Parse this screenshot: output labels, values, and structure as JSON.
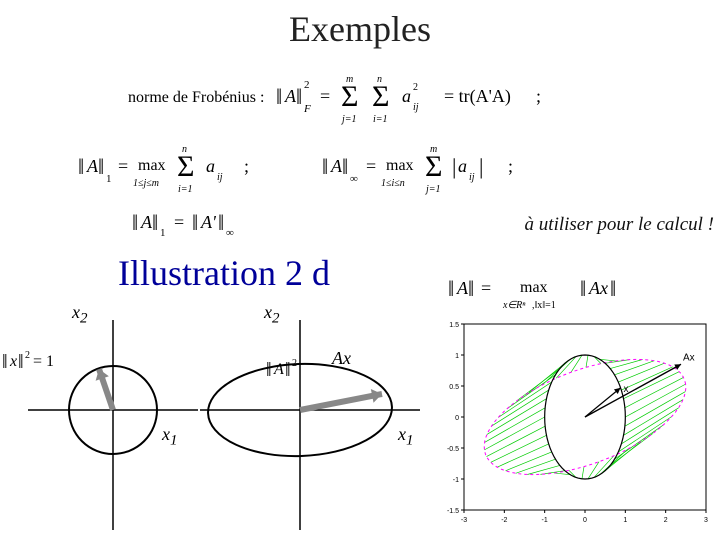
{
  "title_examples": "Exemples",
  "title_illustration": "Illustration 2 d",
  "use_for_calc": "à utiliser pour le calcul !",
  "labels": {
    "x2_left": "x",
    "x2_left_sub": "2",
    "x2_right": "x",
    "x2_right_sub": "2",
    "x1_left": "x",
    "x1_left_sub": "1",
    "x1_right": "x",
    "x1_right_sub": "1",
    "Ax": "Ax"
  },
  "formulas": {
    "frobenius": {
      "prefix": "norme de Frobénius :",
      "lhs_base": "A",
      "lhs_sub": "F",
      "lhs_sup": "2",
      "sum_outer_lo": "j=1",
      "sum_outer_hi": "m",
      "sum_inner_lo": "i=1",
      "sum_inner_hi": "n",
      "term_base": "a",
      "term_sub": "ij",
      "term_sup": "2",
      "trace": "= tr(A'A)",
      "semi": ";"
    },
    "norm1": {
      "lhs_base": "A",
      "lhs_sub": "1",
      "eq": "=",
      "max": "max",
      "max_sub": "1≤j≤m",
      "sum_lo": "i=1",
      "sum_hi": "n",
      "term_base": "a",
      "term_sub": "ij",
      "semi": ";"
    },
    "norminf": {
      "lhs_base": "A",
      "lhs_sub": "∞",
      "eq": "=",
      "max": "max",
      "max_sub": "1≤i≤n",
      "sum_lo": "j=1",
      "sum_hi": "m",
      "term_base": "a",
      "term_sub": "ij",
      "semi": ";"
    },
    "dual": {
      "lhs1_base": "A",
      "lhs1_sub": "1",
      "rhs1_base": "A'",
      "rhs1_sub": "∞"
    },
    "maxnorm": {
      "lhs_base": "A",
      "eq": "=",
      "max": "max",
      "max_sub1": "x∈Rⁿ",
      "max_sub2": ",‖x‖=1",
      "rhs_base": "Ax"
    },
    "xnorm": {
      "base": "x",
      "sup": "2",
      "eq": "= 1"
    },
    "Anorm2": {
      "base": "A",
      "sup": "2"
    }
  },
  "plot1": {
    "circle_r": 44,
    "circle_color": "#000000",
    "axis_color": "#000000",
    "arrow_color": "#888888",
    "arrow_dx": -14,
    "arrow_dy": -41,
    "bg": "#ffffff"
  },
  "plot2": {
    "ellipse_rx": 92,
    "ellipse_ry": 46,
    "ellipse_angle": -2,
    "ellipse_color": "#000000",
    "axis_color": "#000000",
    "arrow_color": "#888888",
    "arrow_dx": 82,
    "arrow_dy": -16,
    "bg": "#ffffff"
  },
  "plot3": {
    "frame_color": "#000000",
    "bg": "#ffffff",
    "circle_color": "#000000",
    "ellipse_color": "#ff00ff",
    "ray_color": "#00cc00",
    "vec_color": "#000000",
    "label_Ax": "Ax",
    "label_x": "x",
    "xlim": [
      -3,
      3
    ],
    "ylim": [
      -1.5,
      1.5
    ],
    "xticks": [
      -3,
      -2,
      -1,
      0,
      1,
      2,
      3
    ],
    "yticks": [
      -1.5,
      -1,
      -0.5,
      0,
      0.5,
      1,
      1.5
    ],
    "tick_fontsize": 7,
    "circle_r": 1.0,
    "ellipse_rx": 2.55,
    "ellipse_ry": 0.78,
    "ellipse_angle_deg": 12,
    "n_rays": 42,
    "vec_x": [
      0.88,
      0.47
    ],
    "vec_Ax": [
      2.38,
      0.85
    ]
  }
}
